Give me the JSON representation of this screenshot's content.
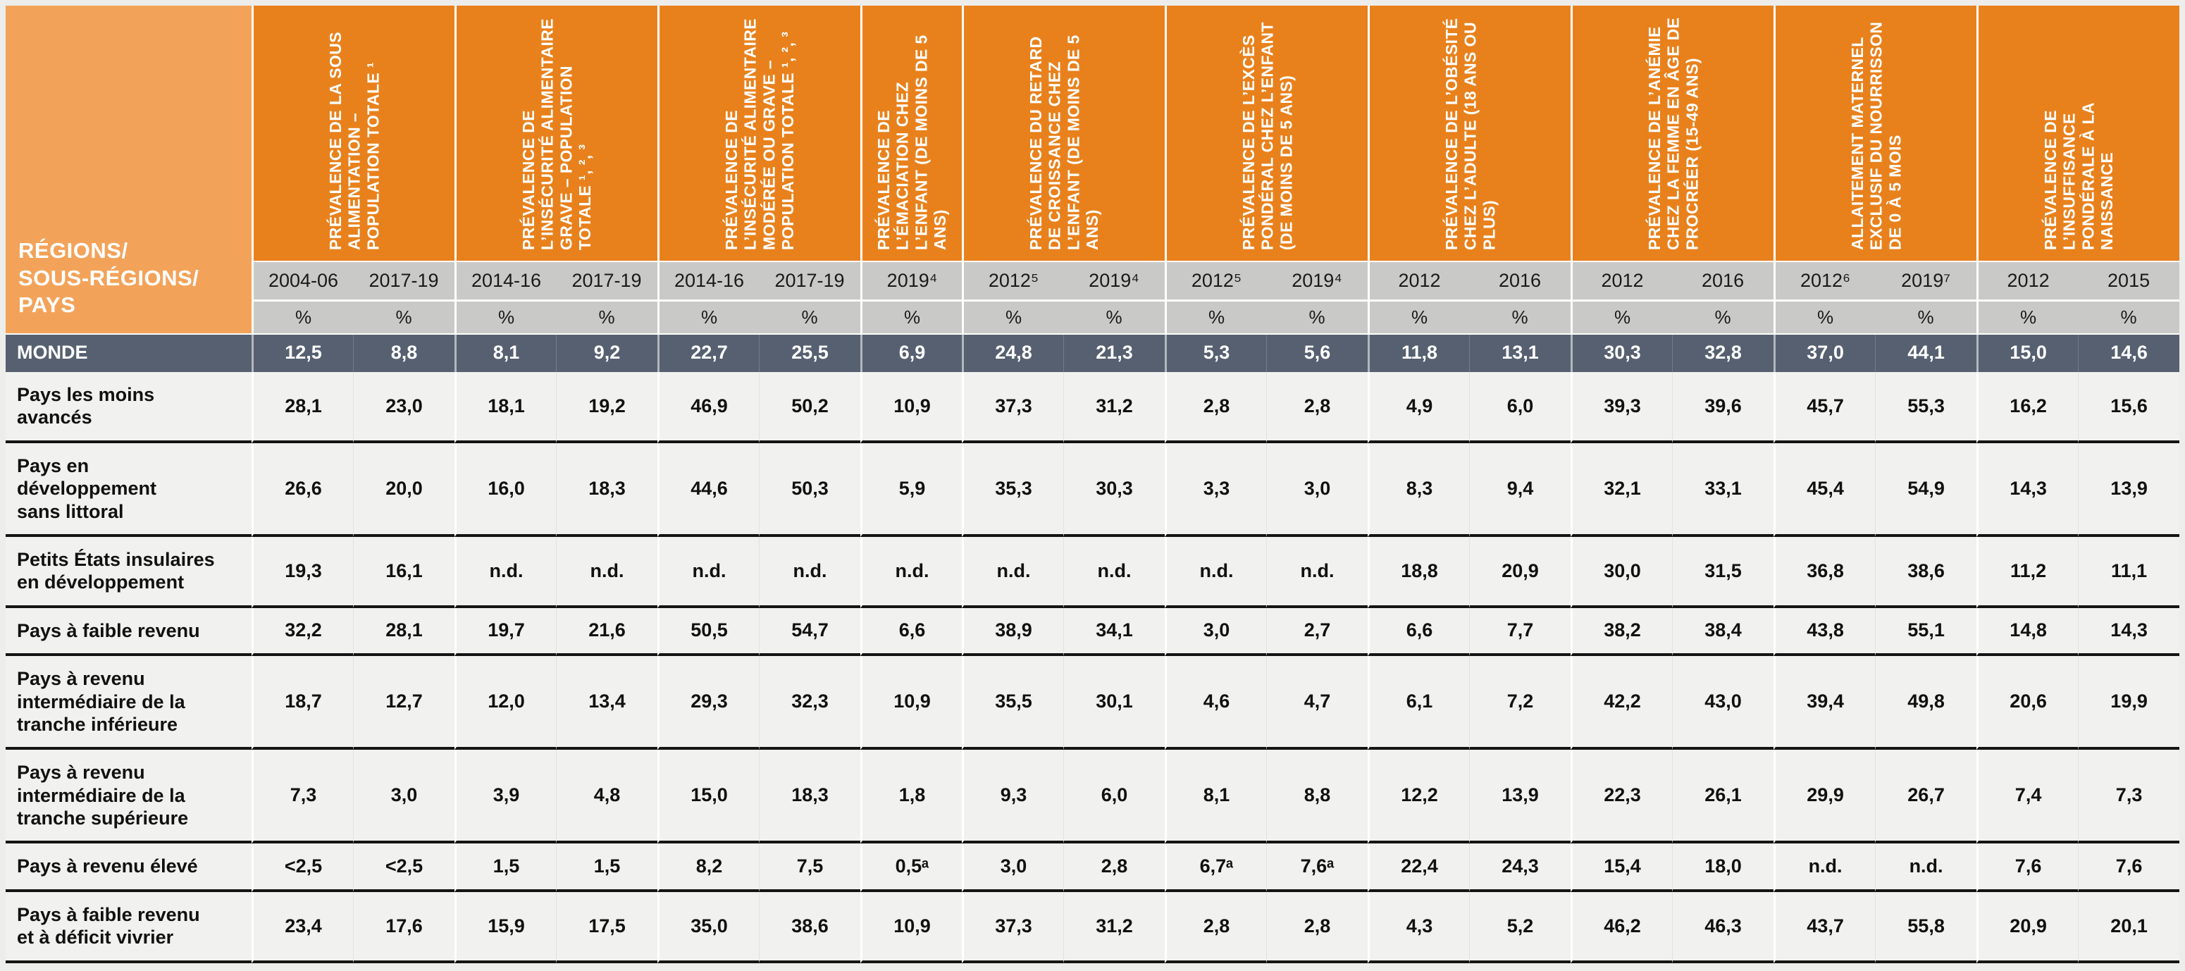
{
  "page": {
    "background": "#EDEDEB"
  },
  "table": {
    "corner_label": "RÉGIONS/\nSOUS-RÉGIONS/\nPAYS",
    "unit_symbol": "%",
    "colors": {
      "corner_bg": "#F2A359",
      "group_header_bg": "#E8811C",
      "year_row_bg": "#C9C9C7",
      "world_row_bg": "#566070",
      "body_bg": "#F1F1EF",
      "row_divider": "#141414",
      "separator": "#FFFFFF"
    },
    "groups": [
      {
        "label": "PRÉVALENCE DE LA SOUS ALIMENTATION – POPULATION TOTALE ¹",
        "years": [
          "2004-06",
          "2017-19"
        ]
      },
      {
        "label": "PRÉVALENCE DE L’INSÉCURITÉ ALIMENTAIRE GRAVE – POPULATION TOTALE ¹, ², ³",
        "years": [
          "2014-16",
          "2017-19"
        ]
      },
      {
        "label": "PRÉVALENCE DE L’INSÉCURITÉ ALIMENTAIRE MODÉRÉE OU GRAVE – POPULATION TOTALE ¹, ², ³",
        "years": [
          "2014-16",
          "2017-19"
        ]
      },
      {
        "label": "PRÉVALENCE DE L’ÉMACIATION CHEZ L’ENFANT (DE MOINS DE 5 ANS)",
        "years": [
          "2019⁴"
        ]
      },
      {
        "label": "PRÉVALENCE DU RETARD DE CROISSANCE CHEZ L’ENFANT (DE MOINS DE 5 ANS)",
        "years": [
          "2012⁵",
          "2019⁴"
        ]
      },
      {
        "label": "PRÉVALENCE DE L’EXCÈS PONDÉRAL CHEZ L’ENFANT (DE MOINS DE 5 ANS)",
        "years": [
          "2012⁵",
          "2019⁴"
        ]
      },
      {
        "label": "PRÉVALENCE DE L’OBÉSITÉ CHEZ L’ADULTE (18 ANS OU PLUS)",
        "years": [
          "2012",
          "2016"
        ]
      },
      {
        "label": "PRÉVALENCE DE L’ANÉMIE CHEZ LA FEMME EN ÂGE DE PROCRÉER (15-49 ANS)",
        "years": [
          "2012",
          "2016"
        ]
      },
      {
        "label": "ALLAITEMENT MATERNEL EXCLUSIF DU NOURRISSON DE 0 À 5 MOIS",
        "years": [
          "2012⁶",
          "2019⁷"
        ]
      },
      {
        "label": "PRÉVALENCE DE L’INSUFFISANCE PONDÉRALE À LA NAISSANCE",
        "years": [
          "2012",
          "2015"
        ]
      }
    ],
    "rows": [
      {
        "label": "MONDE",
        "world": true,
        "values": [
          "12,5",
          "8,8",
          "8,1",
          "9,2",
          "22,7",
          "25,5",
          "6,9",
          "24,8",
          "21,3",
          "5,3",
          "5,6",
          "11,8",
          "13,1",
          "30,3",
          "32,8",
          "37,0",
          "44,1",
          "15,0",
          "14,6"
        ]
      },
      {
        "label": "Pays les moins\navancés",
        "world": false,
        "values": [
          "28,1",
          "23,0",
          "18,1",
          "19,2",
          "46,9",
          "50,2",
          "10,9",
          "37,3",
          "31,2",
          "2,8",
          "2,8",
          "4,9",
          "6,0",
          "39,3",
          "39,6",
          "45,7",
          "55,3",
          "16,2",
          "15,6"
        ]
      },
      {
        "label": "Pays en\ndéveloppement\nsans littoral",
        "world": false,
        "values": [
          "26,6",
          "20,0",
          "16,0",
          "18,3",
          "44,6",
          "50,3",
          "5,9",
          "35,3",
          "30,3",
          "3,3",
          "3,0",
          "8,3",
          "9,4",
          "32,1",
          "33,1",
          "45,4",
          "54,9",
          "14,3",
          "13,9"
        ]
      },
      {
        "label": "Petits États insulaires\nen développement",
        "world": false,
        "values": [
          "19,3",
          "16,1",
          "n.d.",
          "n.d.",
          "n.d.",
          "n.d.",
          "n.d.",
          "n.d.",
          "n.d.",
          "n.d.",
          "n.d.",
          "18,8",
          "20,9",
          "30,0",
          "31,5",
          "36,8",
          "38,6",
          "11,2",
          "11,1"
        ]
      },
      {
        "label": "Pays à faible revenu",
        "world": false,
        "values": [
          "32,2",
          "28,1",
          "19,7",
          "21,6",
          "50,5",
          "54,7",
          "6,6",
          "38,9",
          "34,1",
          "3,0",
          "2,7",
          "6,6",
          "7,7",
          "38,2",
          "38,4",
          "43,8",
          "55,1",
          "14,8",
          "14,3"
        ]
      },
      {
        "label": "Pays à revenu\nintermédiaire de la\ntranche inférieure",
        "world": false,
        "values": [
          "18,7",
          "12,7",
          "12,0",
          "13,4",
          "29,3",
          "32,3",
          "10,9",
          "35,5",
          "30,1",
          "4,6",
          "4,7",
          "6,1",
          "7,2",
          "42,2",
          "43,0",
          "39,4",
          "49,8",
          "20,6",
          "19,9"
        ]
      },
      {
        "label": "Pays à revenu\nintermédiaire de la\ntranche supérieure",
        "world": false,
        "values": [
          "7,3",
          "3,0",
          "3,9",
          "4,8",
          "15,0",
          "18,3",
          "1,8",
          "9,3",
          "6,0",
          "8,1",
          "8,8",
          "12,2",
          "13,9",
          "22,3",
          "26,1",
          "29,9",
          "26,7",
          "7,4",
          "7,3"
        ]
      },
      {
        "label": "Pays à revenu élevé",
        "world": false,
        "values": [
          "<2,5",
          "<2,5",
          "1,5",
          "1,5",
          "8,2",
          "7,5",
          "0,5ᵃ",
          "3,0",
          "2,8",
          "6,7ᵃ",
          "7,6ᵃ",
          "22,4",
          "24,3",
          "15,4",
          "18,0",
          "n.d.",
          "n.d.",
          "7,6",
          "7,6"
        ]
      },
      {
        "label": "Pays à faible revenu\net à déficit vivrier",
        "world": false,
        "values": [
          "23,4",
          "17,6",
          "15,9",
          "17,5",
          "35,0",
          "38,6",
          "10,9",
          "37,3",
          "31,2",
          "2,8",
          "2,8",
          "4,3",
          "5,2",
          "46,2",
          "46,3",
          "43,7",
          "55,8",
          "20,9",
          "20,1"
        ]
      }
    ]
  }
}
